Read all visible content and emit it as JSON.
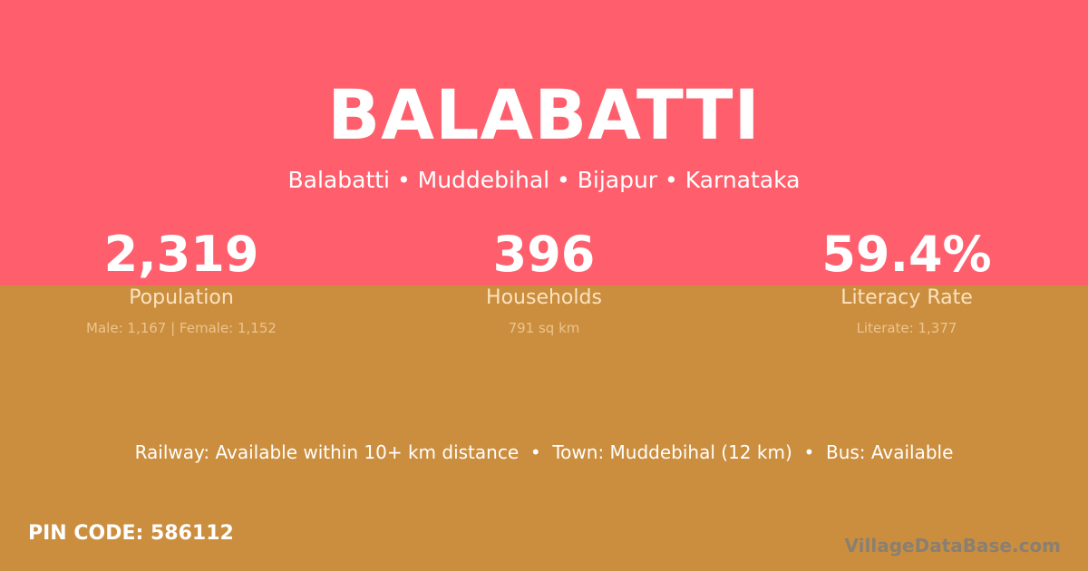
{
  "colors": {
    "top": "#ff5f6d",
    "bottom": "#cb8e3e"
  },
  "title": "BALABATTI",
  "breadcrumb": "Balabatti • Muddebihal • Bijapur • Karnataka",
  "stats": [
    {
      "value": "2,319",
      "label": "Population",
      "detail": "Male: 1,167 | Female: 1,152"
    },
    {
      "value": "396",
      "label": "Households",
      "detail": "791 sq km"
    },
    {
      "value": "59.4%",
      "label": "Literacy Rate",
      "detail": "Literate: 1,377"
    }
  ],
  "info": "Railway: Available within 10+ km distance  •  Town: Muddebihal (12 km)  •  Bus: Available",
  "pin": "PIN CODE: 586112",
  "logo": "VillageDataBase.com"
}
